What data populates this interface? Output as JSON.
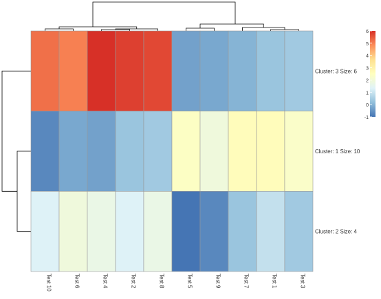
{
  "chart_data": {
    "type": "heatmap",
    "columns": [
      "Test 10",
      "Test 6",
      "Test 4",
      "Test 2",
      "Test 8",
      "Test 5",
      "Test 9",
      "Test 7",
      "Test 1",
      "Test 3"
    ],
    "rows": [
      "Cluster: 3 Size: 6",
      "Cluster: 1 Size: 10",
      "Cluster: 2 Size: 4"
    ],
    "values": [
      [
        5.2,
        5.0,
        6.0,
        5.8,
        5.7,
        -0.3,
        -0.2,
        0.0,
        0.3,
        0.4
      ],
      [
        -0.7,
        -0.2,
        -0.3,
        0.3,
        0.4,
        2.4,
        1.9,
        2.6,
        2.6,
        2.3
      ],
      [
        1.3,
        1.9,
        1.7,
        1.3,
        1.7,
        -1.0,
        -0.7,
        0.3,
        0.9,
        0.4
      ]
    ],
    "color_scale": {
      "min": -1,
      "max": 6,
      "ticks": [
        6,
        5,
        4,
        3,
        2,
        1,
        0,
        -1
      ],
      "colors": [
        "#4575b4",
        "#91bfdb",
        "#e0f3f8",
        "#ffffbf",
        "#fee090",
        "#fc8d59",
        "#d73027"
      ]
    },
    "dendrogram": {
      "columns": true,
      "rows": true
    }
  }
}
